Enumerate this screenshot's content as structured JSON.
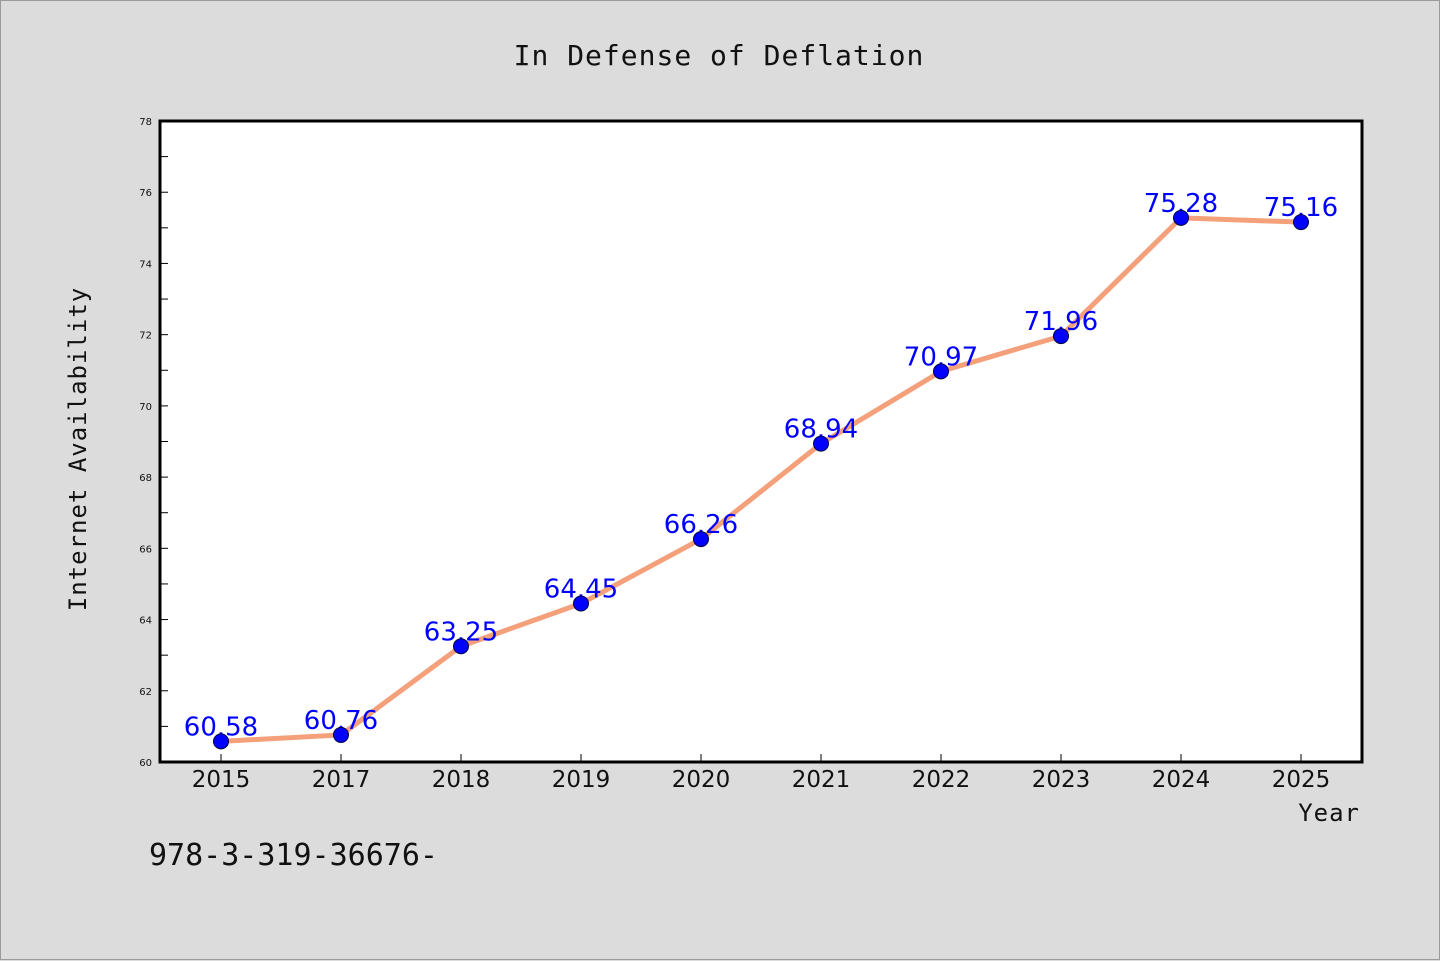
{
  "chart_data": {
    "type": "line",
    "title": "In Defense of Deflation",
    "xlabel": "Year",
    "ylabel": "Internet Availability",
    "categories": [
      "2015",
      "2017",
      "2018",
      "2019",
      "2020",
      "2021",
      "2022",
      "2023",
      "2024",
      "2025"
    ],
    "values": [
      60.58,
      60.76,
      63.25,
      64.45,
      66.26,
      68.94,
      70.97,
      71.96,
      75.28,
      75.16
    ],
    "data_labels": [
      "60.58",
      "60.76",
      "63.25",
      "64.45",
      "66.26",
      "68.94",
      "70.97",
      "71.96",
      "75.28",
      "75.16"
    ],
    "ylim": [
      60,
      78
    ],
    "yticks": [
      60,
      62,
      64,
      66,
      68,
      70,
      72,
      74,
      76,
      78
    ],
    "grid": false,
    "legend": false,
    "line_color": "#f4a07a",
    "marker_color": "#0000ff",
    "label_color": "#0000ff"
  },
  "annotation": "978-3-319-36676-"
}
